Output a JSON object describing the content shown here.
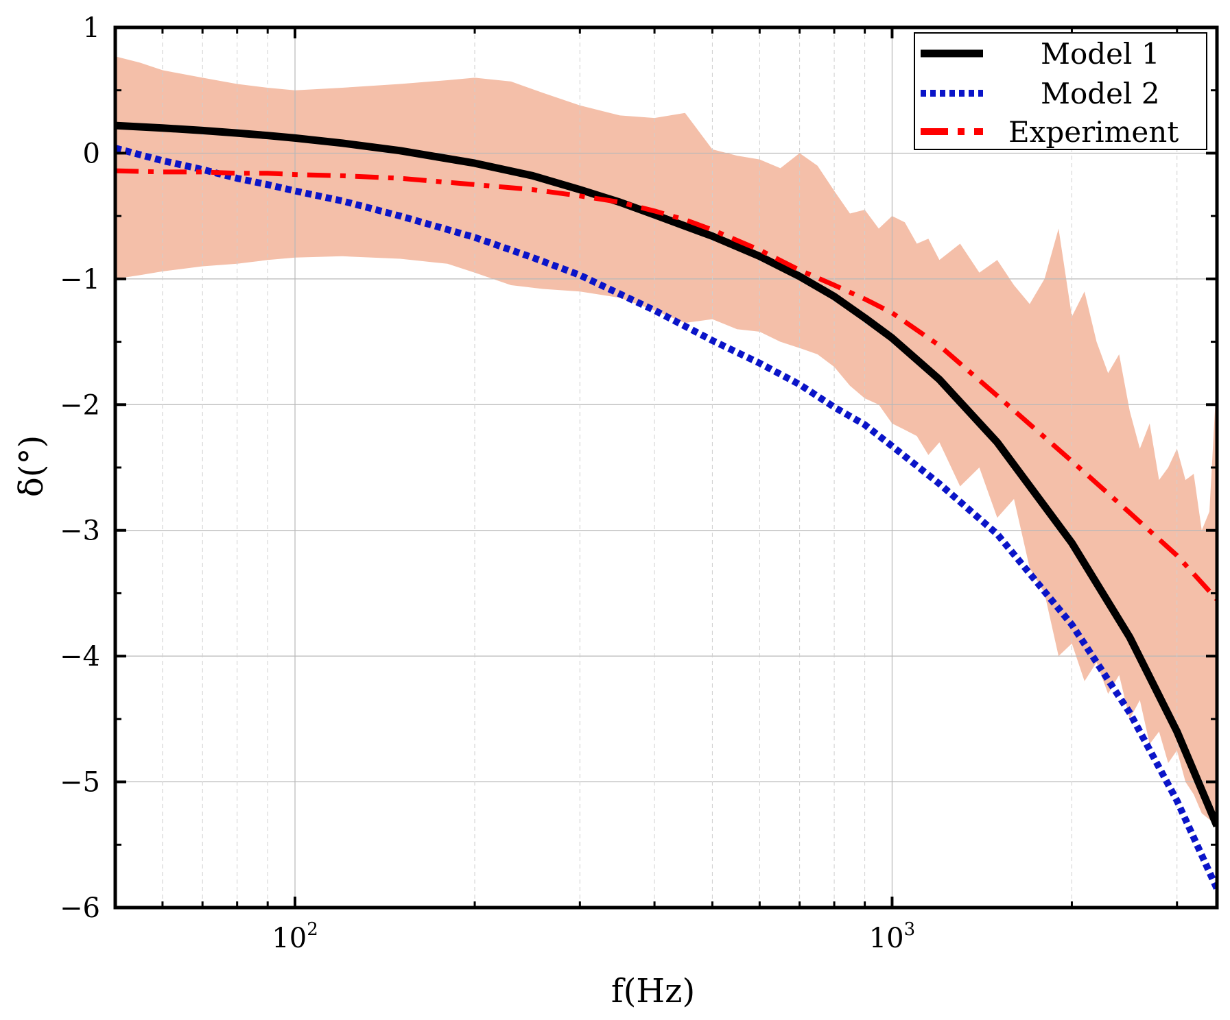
{
  "chart_data": {
    "type": "line",
    "title": "",
    "xlabel": "f(Hz)",
    "ylabel": "δ(°)",
    "xscale": "log",
    "xlim": [
      50,
      3500
    ],
    "ylim": [
      -6,
      1
    ],
    "yticks": [
      1,
      0,
      -1,
      -2,
      -3,
      -4,
      -5,
      -6
    ],
    "ytick_labels": [
      "1",
      "0",
      "−1",
      "−2",
      "−3",
      "−4",
      "−5",
      "−6"
    ],
    "xticks_major": [
      100,
      1000
    ],
    "xtick_labels": [
      {
        "base": "10",
        "exp": "2"
      },
      {
        "base": "10",
        "exp": "3"
      }
    ],
    "xticks_minor": [
      60,
      70,
      80,
      90,
      200,
      300,
      400,
      500,
      600,
      700,
      800,
      900,
      2000,
      3000
    ],
    "grid": true,
    "legend_position": "top-right",
    "series": [
      {
        "name": "Model 1",
        "color": "#000000",
        "style": "solid",
        "x": [
          50,
          60,
          70,
          80,
          90,
          100,
          120,
          150,
          200,
          250,
          300,
          350,
          400,
          450,
          500,
          600,
          700,
          800,
          900,
          1000,
          1200,
          1500,
          2000,
          2500,
          3000,
          3500
        ],
        "y": [
          0.22,
          0.2,
          0.18,
          0.16,
          0.14,
          0.12,
          0.08,
          0.02,
          -0.08,
          -0.18,
          -0.29,
          -0.39,
          -0.49,
          -0.58,
          -0.66,
          -0.82,
          -0.98,
          -1.14,
          -1.31,
          -1.47,
          -1.8,
          -2.3,
          -3.1,
          -3.85,
          -4.6,
          -5.35
        ]
      },
      {
        "name": "Model 2",
        "color": "#0a14c8",
        "style": "dotted",
        "x": [
          50,
          60,
          70,
          80,
          90,
          100,
          120,
          150,
          200,
          250,
          300,
          400,
          500,
          600,
          700,
          800,
          900,
          1000,
          1200,
          1500,
          2000,
          2500,
          3000,
          3500
        ],
        "y": [
          0.04,
          -0.06,
          -0.13,
          -0.2,
          -0.25,
          -0.3,
          -0.38,
          -0.5,
          -0.67,
          -0.83,
          -0.97,
          -1.25,
          -1.49,
          -1.67,
          -1.84,
          -2.02,
          -2.16,
          -2.33,
          -2.63,
          -3.03,
          -3.75,
          -4.45,
          -5.15,
          -5.85
        ]
      },
      {
        "name": "Experiment",
        "color": "#ff0000",
        "style": "dashdot",
        "x": [
          50,
          60,
          70,
          80,
          90,
          100,
          120,
          150,
          200,
          250,
          300,
          350,
          400,
          450,
          500,
          600,
          700,
          800,
          900,
          1000,
          1200,
          1500,
          2000,
          2500,
          3000,
          3500
        ],
        "y": [
          -0.14,
          -0.15,
          -0.15,
          -0.16,
          -0.16,
          -0.17,
          -0.18,
          -0.2,
          -0.25,
          -0.29,
          -0.34,
          -0.39,
          -0.46,
          -0.53,
          -0.61,
          -0.77,
          -0.93,
          -1.05,
          -1.16,
          -1.27,
          -1.53,
          -1.93,
          -2.45,
          -2.86,
          -3.2,
          -3.55
        ]
      }
    ],
    "band": {
      "color": "#f4bfa9",
      "x": [
        50,
        55,
        60,
        70,
        80,
        90,
        100,
        120,
        150,
        180,
        200,
        230,
        260,
        300,
        350,
        400,
        450,
        500,
        550,
        600,
        650,
        700,
        750,
        800,
        850,
        900,
        950,
        1000,
        1050,
        1100,
        1150,
        1200,
        1300,
        1400,
        1500,
        1600,
        1700,
        1800,
        1900,
        2000,
        2100,
        2200,
        2300,
        2400,
        2500,
        2600,
        2700,
        2800,
        2900,
        3000,
        3100,
        3200,
        3300,
        3400,
        3500
      ],
      "upper": [
        0.77,
        0.72,
        0.66,
        0.6,
        0.55,
        0.52,
        0.5,
        0.52,
        0.55,
        0.58,
        0.6,
        0.57,
        0.48,
        0.38,
        0.3,
        0.28,
        0.32,
        0.03,
        -0.02,
        -0.05,
        -0.12,
        0.0,
        -0.1,
        -0.3,
        -0.48,
        -0.45,
        -0.6,
        -0.5,
        -0.55,
        -0.72,
        -0.68,
        -0.85,
        -0.72,
        -0.95,
        -0.85,
        -1.05,
        -1.2,
        -1.0,
        -0.6,
        -1.3,
        -1.1,
        -1.5,
        -1.75,
        -1.6,
        -2.05,
        -2.35,
        -2.15,
        -2.6,
        -2.5,
        -2.35,
        -2.6,
        -2.55,
        -3.0,
        -2.85,
        -1.75
      ],
      "lower": [
        -1.0,
        -0.97,
        -0.94,
        -0.9,
        -0.88,
        -0.85,
        -0.83,
        -0.82,
        -0.84,
        -0.88,
        -0.95,
        -1.05,
        -1.08,
        -1.1,
        -1.15,
        -1.25,
        -1.35,
        -1.32,
        -1.4,
        -1.42,
        -1.5,
        -1.55,
        -1.6,
        -1.7,
        -1.85,
        -1.95,
        -2.0,
        -2.15,
        -2.2,
        -2.25,
        -2.4,
        -2.3,
        -2.65,
        -2.5,
        -2.9,
        -2.75,
        -3.3,
        -3.5,
        -4.0,
        -3.9,
        -4.2,
        -4.05,
        -4.3,
        -4.15,
        -4.5,
        -4.35,
        -4.7,
        -4.6,
        -4.85,
        -4.75,
        -5.0,
        -5.1,
        -5.25,
        -5.3,
        -5.35
      ]
    },
    "annotations": []
  }
}
